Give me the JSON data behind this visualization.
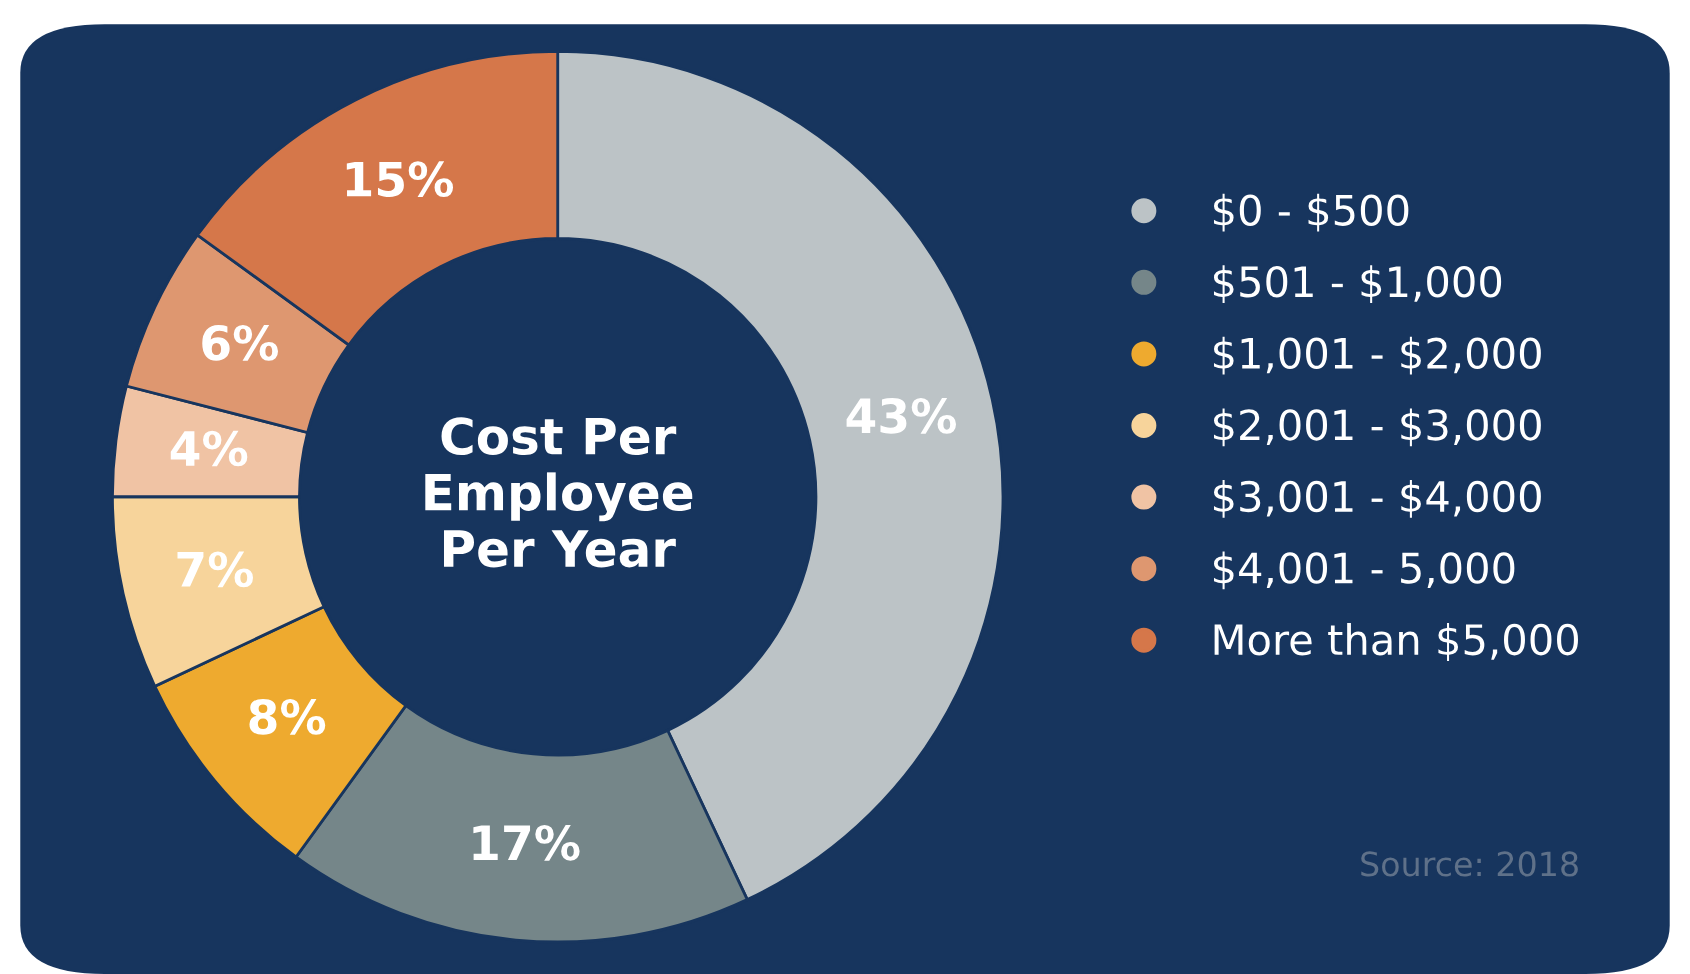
{
  "chart_data": {
    "type": "donut",
    "title": "Cost Per\nEmployee\nPer Year",
    "categories": [
      "$0 - $500",
      "$501 - $1,000",
      "$1,001 - $2,000",
      "$2,001 - $3,000",
      "$3,001 - $4,000",
      "$4,001 - 5,000",
      "More than $5,000"
    ],
    "values": [
      43,
      17,
      8,
      7,
      4,
      6,
      15
    ],
    "colors": [
      "#bcc3c6",
      "#758689",
      "#eeaa2f",
      "#f7d49b",
      "#f0c3a4",
      "#de9770",
      "#d5774a"
    ],
    "value_labels": [
      "43%",
      "17%",
      "8%",
      "7%",
      "4%",
      "6%",
      "15%"
    ],
    "legend": "right",
    "annotations": [
      "Source: 2018"
    ]
  }
}
